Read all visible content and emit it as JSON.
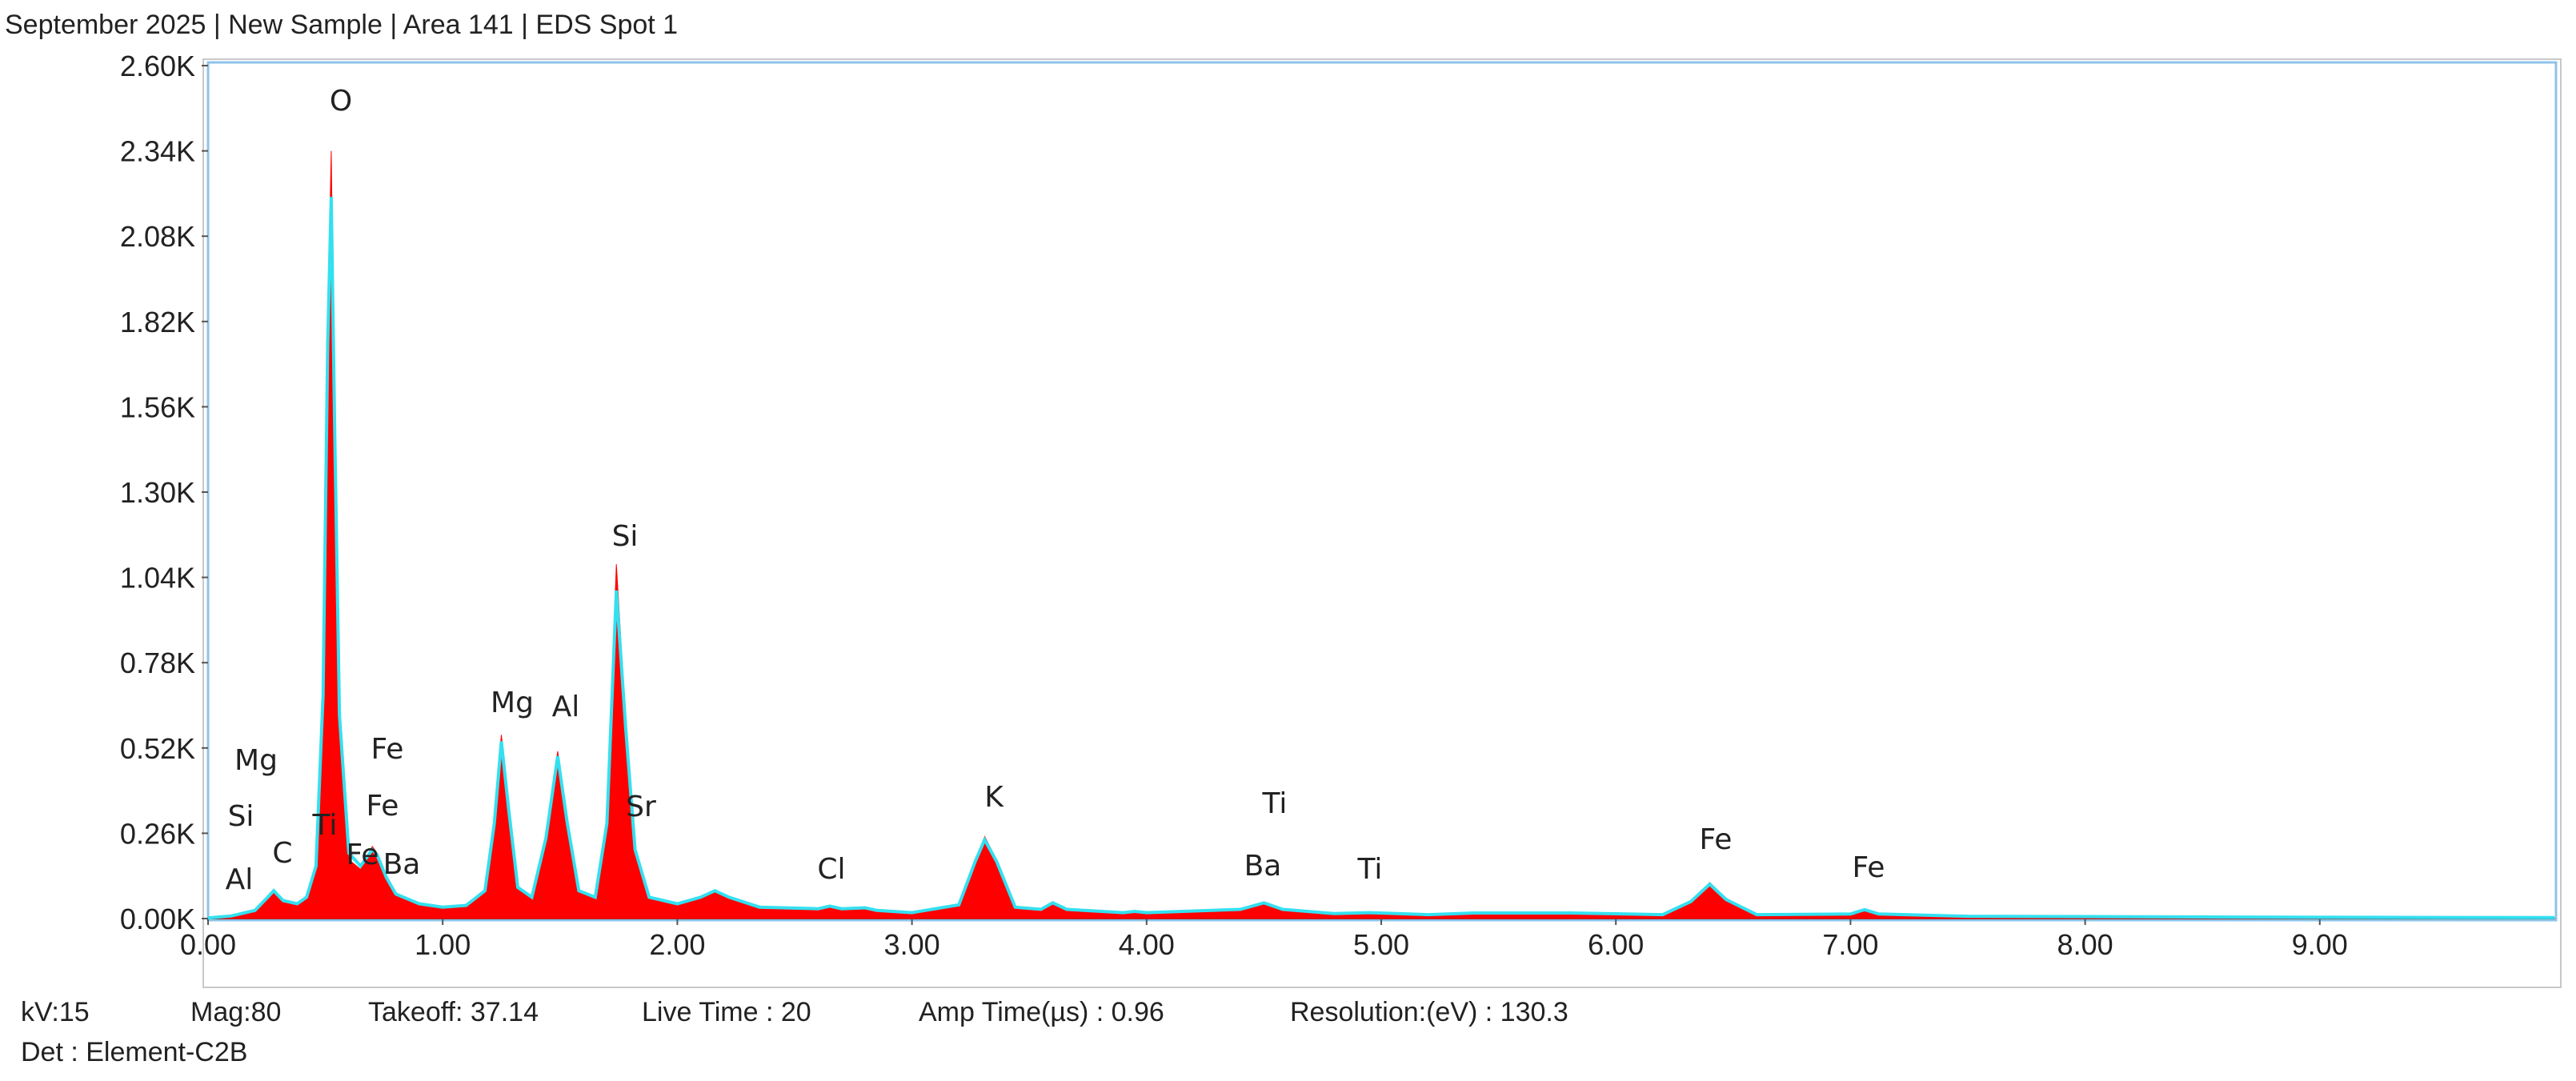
{
  "header": {
    "title": "September 2025 | New Sample | Area 141 | EDS Spot 1"
  },
  "chart_data": {
    "type": "area",
    "x": [
      0.0,
      0.1,
      0.2,
      0.25,
      0.28,
      0.32,
      0.38,
      0.42,
      0.46,
      0.49,
      0.51,
      0.525,
      0.54,
      0.56,
      0.6,
      0.65,
      0.7,
      0.72,
      0.76,
      0.8,
      0.9,
      1.0,
      1.1,
      1.18,
      1.22,
      1.25,
      1.28,
      1.32,
      1.38,
      1.44,
      1.49,
      1.53,
      1.58,
      1.65,
      1.7,
      1.74,
      1.78,
      1.82,
      1.88,
      2.0,
      2.1,
      2.16,
      2.22,
      2.35,
      2.6,
      2.65,
      2.7,
      2.8,
      2.85,
      3.0,
      3.2,
      3.27,
      3.31,
      3.36,
      3.44,
      3.55,
      3.6,
      3.66,
      3.9,
      3.95,
      4.0,
      4.4,
      4.5,
      4.58,
      4.8,
      4.95,
      5.2,
      5.4,
      5.8,
      6.2,
      6.32,
      6.4,
      6.47,
      6.6,
      7.0,
      7.06,
      7.12,
      7.5,
      8.0,
      9.0,
      10.0
    ],
    "series": [
      {
        "color": "#ff0000",
        "values": [
          0,
          5,
          20,
          60,
          90,
          50,
          40,
          60,
          150,
          700,
          1800,
          2340,
          1500,
          600,
          180,
          150,
          220,
          200,
          120,
          70,
          40,
          30,
          35,
          80,
          300,
          560,
          350,
          90,
          60,
          250,
          510,
          300,
          80,
          60,
          300,
          1080,
          600,
          200,
          60,
          40,
          60,
          80,
          60,
          30,
          25,
          35,
          25,
          30,
          20,
          15,
          40,
          180,
          250,
          180,
          30,
          25,
          45,
          25,
          15,
          20,
          15,
          25,
          45,
          25,
          12,
          15,
          10,
          15,
          15,
          10,
          50,
          110,
          60,
          10,
          12,
          25,
          12,
          5,
          5,
          3,
          2
        ]
      },
      {
        "color": "#33e0f0",
        "values": [
          2,
          8,
          25,
          62,
          85,
          55,
          45,
          65,
          160,
          680,
          1750,
          2200,
          1480,
          620,
          200,
          160,
          210,
          195,
          125,
          75,
          45,
          35,
          40,
          85,
          290,
          540,
          340,
          95,
          65,
          245,
          495,
          295,
          85,
          65,
          290,
          1000,
          580,
          210,
          65,
          45,
          65,
          85,
          65,
          35,
          30,
          38,
          30,
          33,
          25,
          18,
          42,
          175,
          240,
          175,
          35,
          28,
          48,
          28,
          18,
          22,
          18,
          28,
          48,
          28,
          15,
          18,
          12,
          17,
          17,
          12,
          52,
          105,
          58,
          12,
          14,
          27,
          14,
          7,
          6,
          4,
          3
        ]
      }
    ],
    "xlim": [
      0,
      10
    ],
    "ylim": [
      0,
      2600
    ],
    "xticks": [
      {
        "value": 0,
        "label": "0.00"
      },
      {
        "value": 1,
        "label": "1.00"
      },
      {
        "value": 2,
        "label": "2.00"
      },
      {
        "value": 3,
        "label": "3.00"
      },
      {
        "value": 4,
        "label": "4.00"
      },
      {
        "value": 5,
        "label": "5.00"
      },
      {
        "value": 6,
        "label": "6.00"
      },
      {
        "value": 7,
        "label": "7.00"
      },
      {
        "value": 8,
        "label": "8.00"
      },
      {
        "value": 9,
        "label": "9.00"
      }
    ],
    "yticks": [
      {
        "value": 0,
        "label": "0.00K"
      },
      {
        "value": 260,
        "label": "0.26K"
      },
      {
        "value": 520,
        "label": "0.52K"
      },
      {
        "value": 780,
        "label": "0.78K"
      },
      {
        "value": 1040,
        "label": "1.04K"
      },
      {
        "value": 1300,
        "label": "1.30K"
      },
      {
        "value": 1560,
        "label": "1.56K"
      },
      {
        "value": 1820,
        "label": "1.82K"
      },
      {
        "value": 2080,
        "label": "2.08K"
      },
      {
        "value": 2340,
        "label": "2.34K"
      },
      {
        "value": 2600,
        "label": "2.60K"
      }
    ],
    "peak_labels": [
      "O",
      "Si",
      "Mg",
      "Al",
      "Sr",
      "K",
      "Ti",
      "Ba",
      "Ti",
      "Cl",
      "Fe",
      "Fe",
      "Mg",
      "Si",
      "Al",
      "C",
      "Ti",
      "Fe",
      "Ba",
      "Fe",
      "Fe"
    ]
  },
  "footer": {
    "line1": [
      "kV:15",
      "Mag:80",
      "Takeoff: 37.14",
      "Live Time : 20",
      "Amp Time(µs) : 0.96",
      "Resolution:(eV) : 130.3"
    ],
    "line2": "Det : Element-C2B"
  }
}
